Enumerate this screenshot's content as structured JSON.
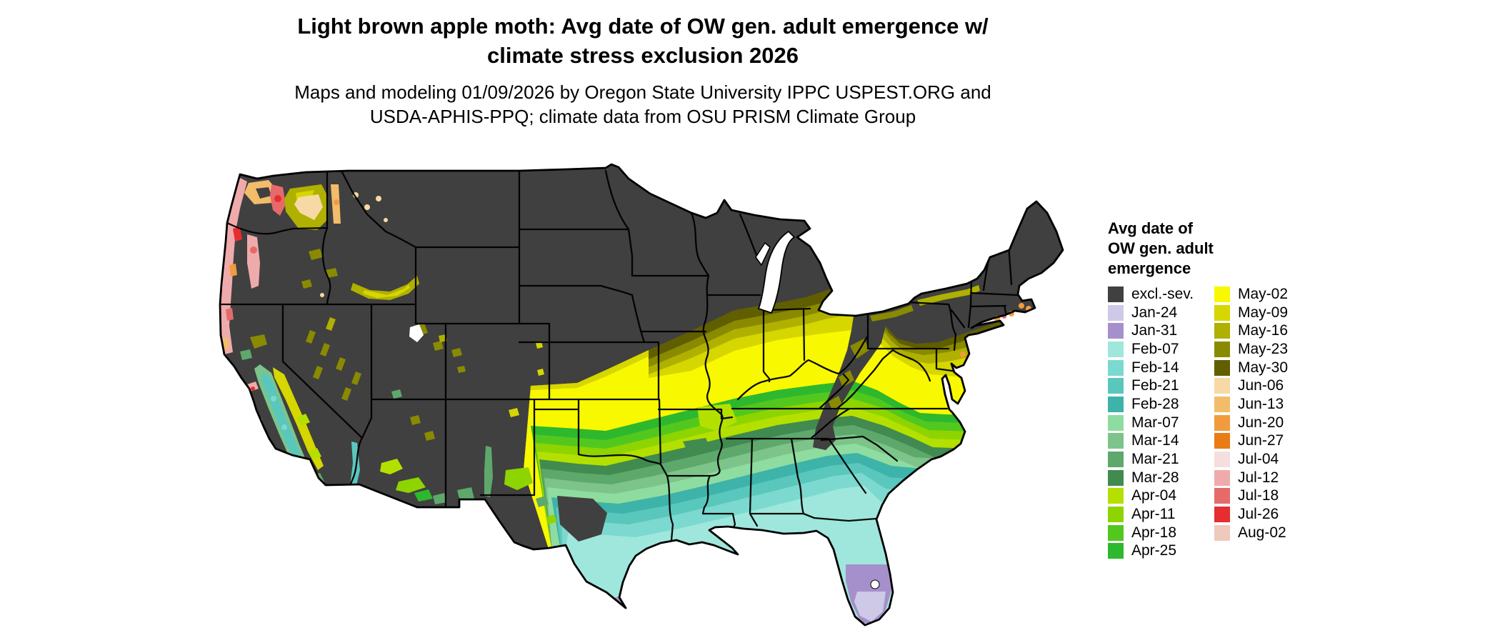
{
  "header": {
    "title_line1": "Light brown apple moth: Avg date of OW gen. adult emergence w/",
    "title_line2": "climate stress exclusion 2026",
    "subtitle_line1": "Maps and modeling 01/09/2026 by Oregon State University IPPC USPEST.ORG and",
    "subtitle_line2": "USDA-APHIS-PPQ; climate data from OSU PRISM Climate Group"
  },
  "legend": {
    "title_line1": "Avg date of",
    "title_line2": "OW gen. adult",
    "title_line3": "emergence",
    "column1": [
      {
        "label": "excl.-sev.",
        "color": "#404040"
      },
      {
        "label": "Jan-24",
        "color": "#cdc9e6"
      },
      {
        "label": "Jan-31",
        "color": "#a690cb"
      },
      {
        "label": "Feb-07",
        "color": "#9fe7dd"
      },
      {
        "label": "Feb-14",
        "color": "#7cd9cf"
      },
      {
        "label": "Feb-21",
        "color": "#5ac7bd"
      },
      {
        "label": "Feb-28",
        "color": "#3eb3a9"
      },
      {
        "label": "Mar-07",
        "color": "#8fdca0"
      },
      {
        "label": "Mar-14",
        "color": "#7cc489"
      },
      {
        "label": "Mar-21",
        "color": "#5ea86c"
      },
      {
        "label": "Mar-28",
        "color": "#418a50"
      },
      {
        "label": "Apr-04",
        "color": "#b4e000"
      },
      {
        "label": "Apr-11",
        "color": "#8ed400"
      },
      {
        "label": "Apr-18",
        "color": "#52c81e"
      },
      {
        "label": "Apr-25",
        "color": "#2eb82e"
      }
    ],
    "column2": [
      {
        "label": "May-02",
        "color": "#f8f800"
      },
      {
        "label": "May-09",
        "color": "#d6d600"
      },
      {
        "label": "May-16",
        "color": "#b0b000"
      },
      {
        "label": "May-23",
        "color": "#8a8a00"
      },
      {
        "label": "May-30",
        "color": "#615e00"
      },
      {
        "label": "Jun-06",
        "color": "#f7d9a5"
      },
      {
        "label": "Jun-13",
        "color": "#f3bc6b"
      },
      {
        "label": "Jun-20",
        "color": "#f09c3e"
      },
      {
        "label": "Jun-27",
        "color": "#e97c14"
      },
      {
        "label": "Jul-04",
        "color": "#f6dede"
      },
      {
        "label": "Jul-12",
        "color": "#efabab"
      },
      {
        "label": "Jul-18",
        "color": "#e66a6a"
      },
      {
        "label": "Jul-26",
        "color": "#e62e2e"
      },
      {
        "label": "Aug-02",
        "color": "#eec9bc"
      }
    ],
    "excluded_color": "#404040",
    "border_color": "#000000",
    "background_color": "#ffffff"
  }
}
